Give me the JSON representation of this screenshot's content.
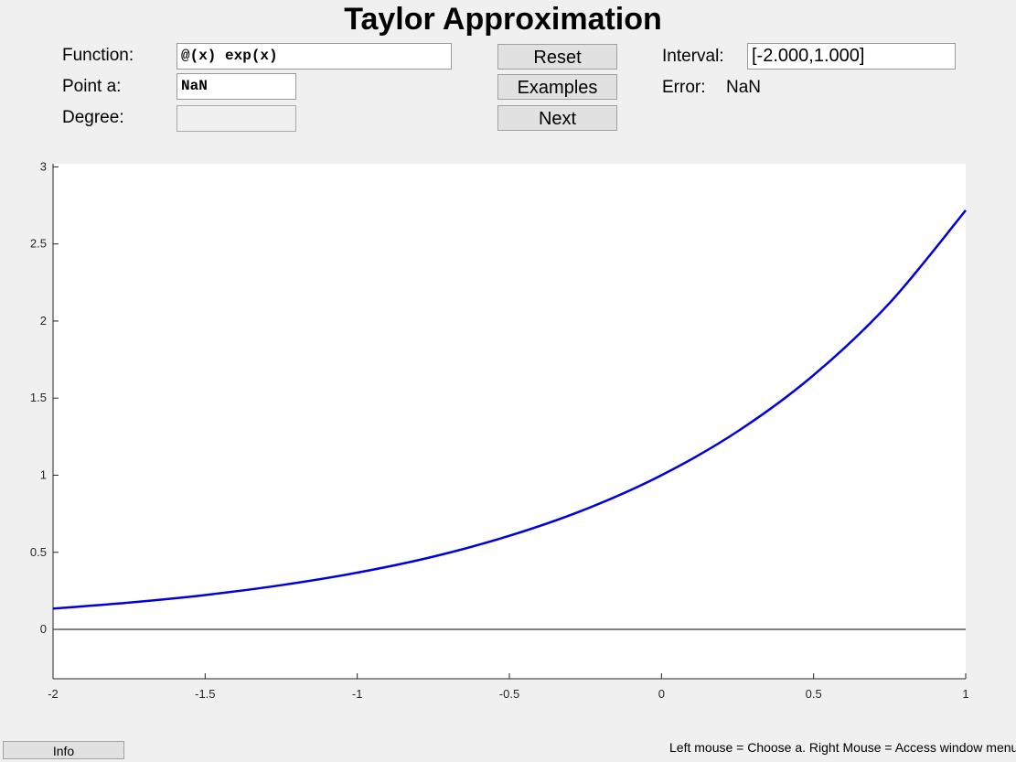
{
  "title": "Taylor Approximation",
  "controls": {
    "function_label": "Function:",
    "function_value": "@(x) exp(x)",
    "point_label": "Point a:",
    "point_value": "NaN",
    "degree_label": "Degree:",
    "degree_value": "",
    "interval_label": "Interval:",
    "interval_value": "[-2.000,1.000]",
    "error_label": "Error:",
    "error_value": "NaN"
  },
  "buttons": {
    "reset": "Reset",
    "examples": "Examples",
    "next": "Next",
    "info": "Info"
  },
  "hint": "Left mouse = Choose a. Right Mouse = Access window menu",
  "colors": {
    "curve": "#0000dd",
    "axis_zero": "#000000",
    "plot_bg": "#ffffff"
  },
  "chart_data": {
    "type": "line",
    "title": "",
    "xlabel": "",
    "ylabel": "",
    "xlim": [
      -2,
      1
    ],
    "ylim": [
      -0.32,
      3.02
    ],
    "xticks": [
      -2,
      -1.5,
      -1,
      -0.5,
      0,
      0.5,
      1
    ],
    "xtick_labels": [
      "-2",
      "-1.5",
      "-1",
      "-0.5",
      "0",
      "0.5",
      "1"
    ],
    "yticks": [
      0,
      0.5,
      1,
      1.5,
      2,
      2.5,
      3
    ],
    "ytick_labels": [
      "0",
      "0.5",
      "1",
      "1.5",
      "2",
      "2.5",
      "3"
    ],
    "zero_line": true,
    "grid": false,
    "series": [
      {
        "x": [
          -2.0,
          -1.75,
          -1.5,
          -1.25,
          -1.0,
          -0.75,
          -0.5,
          -0.25,
          0.0,
          0.25,
          0.5,
          0.75,
          1.0
        ],
        "y": [
          0.135,
          0.174,
          0.223,
          0.287,
          0.368,
          0.472,
          0.607,
          0.779,
          1.0,
          1.284,
          1.649,
          2.117,
          2.718
        ]
      }
    ]
  }
}
